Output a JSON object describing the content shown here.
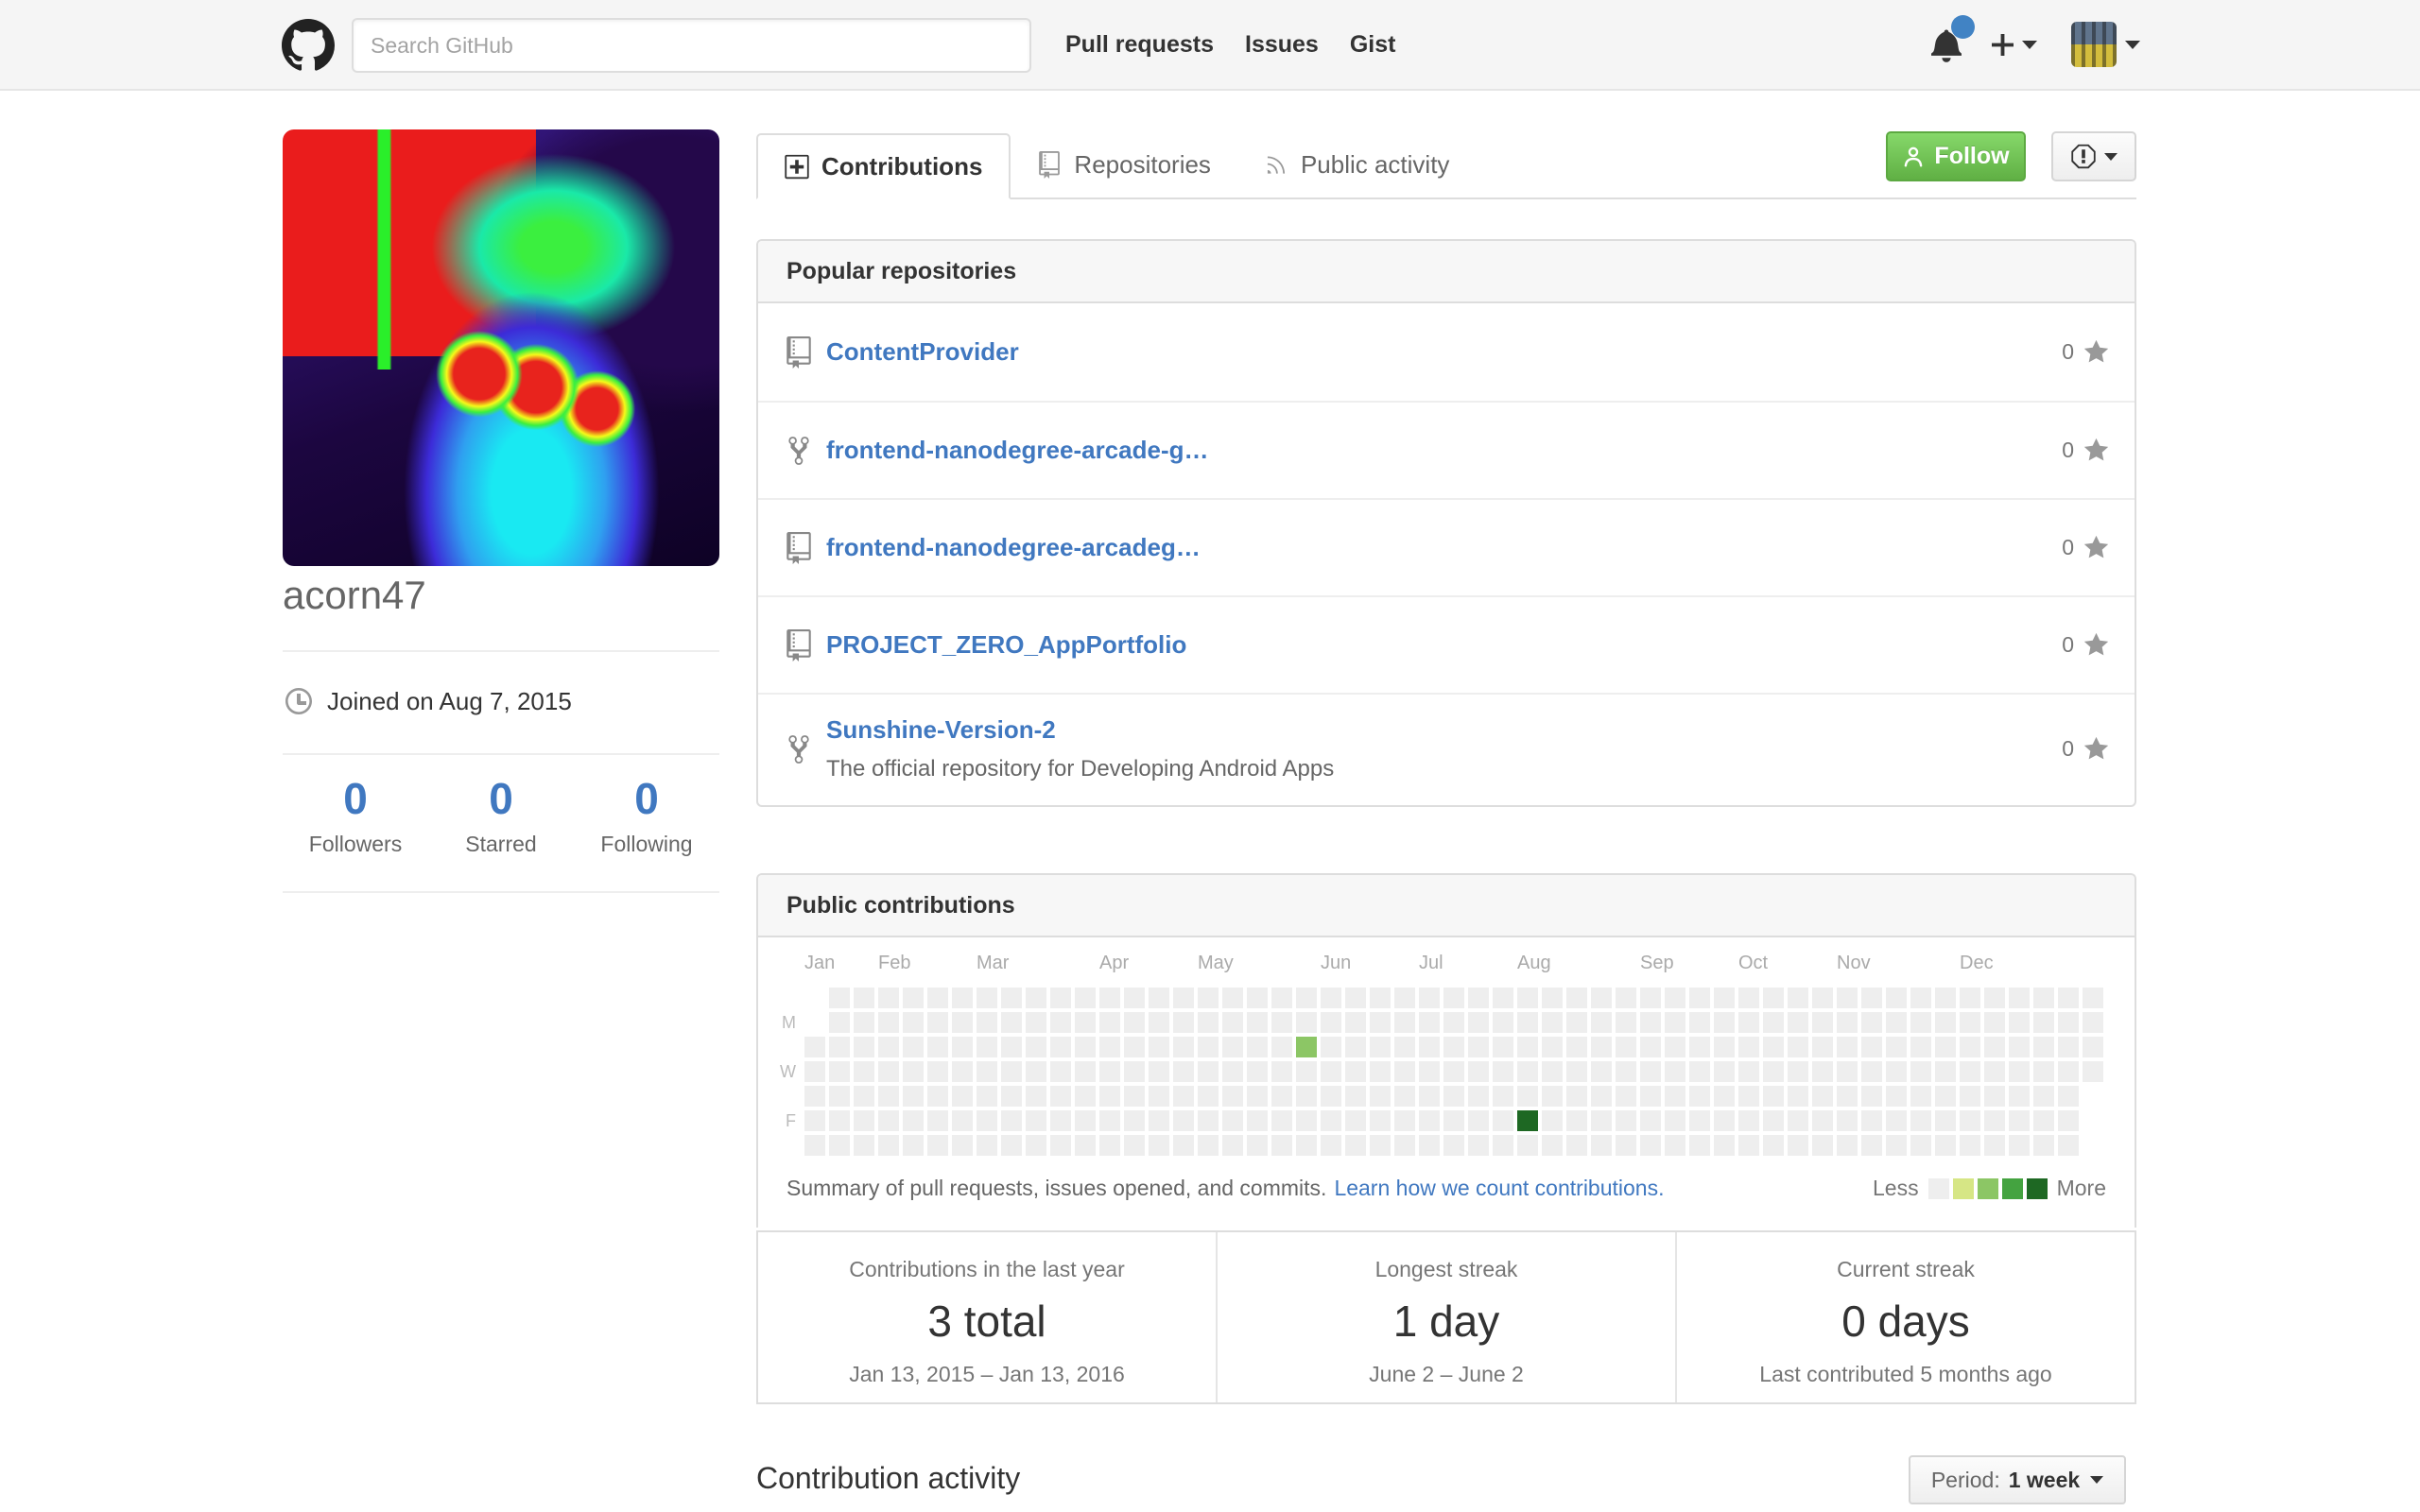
{
  "colors": {
    "header_bg": "#f5f5f5",
    "link_blue": "#4078c0",
    "unread_dot_blue": "#4183c4",
    "follow_green_top": "#86d86a",
    "follow_green_bottom": "#60b044",
    "cell_empty": "#eeeeee",
    "counter_blue": "#4078c0"
  },
  "header": {
    "search_placeholder": "Search GitHub",
    "nav": [
      {
        "label": "Pull requests"
      },
      {
        "label": "Issues"
      },
      {
        "label": "Gist"
      }
    ],
    "has_unread_notifications": true
  },
  "profile": {
    "username": "acorn47",
    "joined": "Joined on Aug 7, 2015",
    "counters": [
      {
        "count": "0",
        "label": "Followers"
      },
      {
        "count": "0",
        "label": "Starred"
      },
      {
        "count": "0",
        "label": "Following"
      }
    ]
  },
  "tabs": [
    {
      "label": "Contributions",
      "icon": "diff-added",
      "active": true
    },
    {
      "label": "Repositories",
      "icon": "repo",
      "active": false
    },
    {
      "label": "Public activity",
      "icon": "rss",
      "active": false
    }
  ],
  "actions": {
    "follow_label": "Follow"
  },
  "popular_repositories": {
    "title": "Popular repositories",
    "repos": [
      {
        "name": "ContentProvider",
        "icon": "repo",
        "stars": "0",
        "description": ""
      },
      {
        "name": "frontend-nanodegree-arcade-g…",
        "icon": "repo-forked",
        "stars": "0",
        "description": ""
      },
      {
        "name": "frontend-nanodegree-arcadeg…",
        "icon": "repo",
        "stars": "0",
        "description": ""
      },
      {
        "name": "PROJECT_ZERO_AppPortfolio",
        "icon": "repo",
        "stars": "0",
        "description": ""
      },
      {
        "name": "Sunshine-Version-2",
        "icon": "repo-forked",
        "stars": "0",
        "description": "The official repository for Developing Android Apps"
      }
    ]
  },
  "contributions": {
    "title": "Public contributions",
    "summary_text": "Summary of pull requests, issues opened, and commits.",
    "summary_link": "Learn how we count contributions.",
    "legend": {
      "less": "Less",
      "more": "More",
      "colors": [
        "#eeeeee",
        "#d6e685",
        "#8cc665",
        "#44a340",
        "#1e6823"
      ]
    },
    "calendar": {
      "weeks": 53,
      "first_week_start_row": 2,
      "last_week_end_row": 3,
      "day_labels": [
        {
          "label": "M",
          "row": 1
        },
        {
          "label": "W",
          "row": 3
        },
        {
          "label": "F",
          "row": 5
        }
      ],
      "months": [
        {
          "label": "Jan",
          "col": 0
        },
        {
          "label": "Feb",
          "col": 3
        },
        {
          "label": "Mar",
          "col": 7
        },
        {
          "label": "Apr",
          "col": 12
        },
        {
          "label": "May",
          "col": 16
        },
        {
          "label": "Jun",
          "col": 21
        },
        {
          "label": "Jul",
          "col": 25
        },
        {
          "label": "Aug",
          "col": 29
        },
        {
          "label": "Sep",
          "col": 34
        },
        {
          "label": "Oct",
          "col": 38
        },
        {
          "label": "Nov",
          "col": 42
        },
        {
          "label": "Dec",
          "col": 47
        }
      ],
      "highlighted_cells": [
        {
          "col": 20,
          "row": 2,
          "color": "#8cc665"
        },
        {
          "col": 29,
          "row": 5,
          "color": "#1e6823"
        }
      ]
    },
    "stats": [
      {
        "label": "Contributions in the last year",
        "value": "3 total",
        "sub": "Jan 13, 2015 – Jan 13, 2016"
      },
      {
        "label": "Longest streak",
        "value": "1 day",
        "sub": "June 2 – June 2"
      },
      {
        "label": "Current streak",
        "value": "0 days",
        "sub": "Last contributed 5 months ago"
      }
    ]
  },
  "footer": {
    "activity_title": "Contribution activity",
    "period_label": "Period:",
    "period_value": "1 week"
  }
}
